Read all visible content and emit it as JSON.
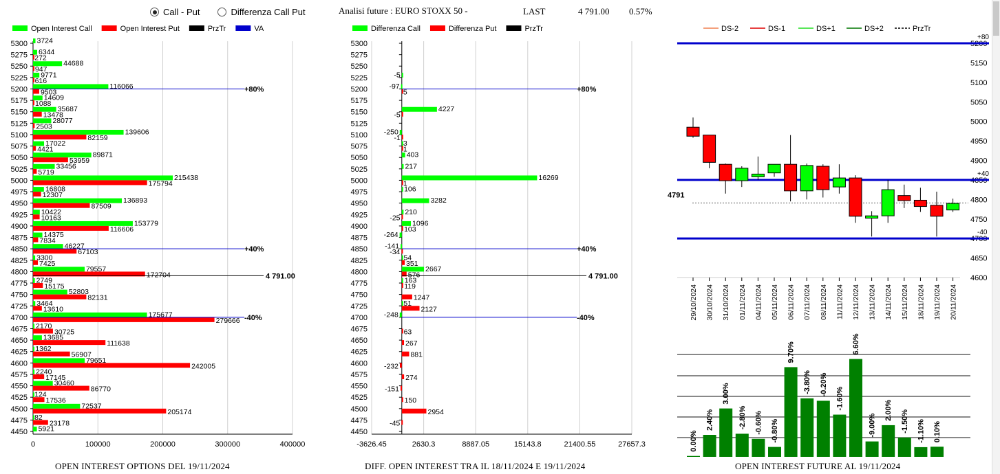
{
  "header": {
    "radio_call_put": "Call - Put",
    "radio_diff": "Differenza Call Put",
    "analysis_label": "Analisi future : EURO STOXX 50 -",
    "last_label": "LAST",
    "last_value": "4 791.00",
    "last_change": "0.57%"
  },
  "footers": {
    "left": "OPEN INTEREST OPTIONS DEL 19/11/2024",
    "middle": "DIFF. OPEN INTEREST TRA IL 18/11/2024 E 19/11/2024",
    "right": "OPEN INTEREST FUTURE AL 19/11/2024"
  },
  "colors": {
    "green": "#00ff00",
    "red": "#ff0000",
    "blue": "#0000cc",
    "dark_green": "#008000",
    "black": "#000000"
  },
  "chart_data": [
    {
      "id": "oi_options",
      "type": "bar",
      "orientation": "horizontal",
      "legend": [
        "Open Interest Call",
        "Open Interest Put",
        "PrzTr",
        "VA"
      ],
      "strikes": [
        "5300",
        "5275",
        "5250",
        "5225",
        "5200",
        "5175",
        "5150",
        "5125",
        "5100",
        "5075",
        "5050",
        "5025",
        "5000",
        "4975",
        "4950",
        "4925",
        "4900",
        "4875",
        "4850",
        "4825",
        "4800",
        "4775",
        "4750",
        "4725",
        "4700",
        "4675",
        "4650",
        "4625",
        "4600",
        "4575",
        "4550",
        "4525",
        "4500",
        "4475",
        "4450"
      ],
      "call": [
        3724,
        6344,
        44688,
        9771,
        116066,
        14609,
        35687,
        28077,
        139606,
        17022,
        89871,
        33456,
        215438,
        16808,
        136893,
        10422,
        153779,
        14375,
        46227,
        3300,
        79557,
        2749,
        52803,
        3464,
        175677,
        2170,
        13685,
        1362,
        79651,
        2240,
        30460,
        124,
        72537,
        82,
        5921
      ],
      "put": [
        null,
        272,
        947,
        616,
        9503,
        1088,
        13478,
        2503,
        82159,
        4421,
        53959,
        5719,
        175794,
        12307,
        87509,
        10163,
        116606,
        7834,
        67103,
        7425,
        172704,
        15175,
        82131,
        13610,
        279666,
        30725,
        111638,
        56907,
        242005,
        17145,
        86770,
        17536,
        205174,
        23178,
        null
      ],
      "xticks": [
        "0",
        "100000",
        "200000",
        "300000",
        "400000"
      ],
      "xlim": [
        0,
        400000
      ],
      "lines": [
        {
          "strike": "5200",
          "label": "+80%"
        },
        {
          "strike": "4850",
          "label": "+40%"
        },
        {
          "strike": "4700",
          "label": "-40%"
        }
      ],
      "price_line": {
        "value": 4791,
        "label": "4 791.00"
      }
    },
    {
      "id": "oi_diff",
      "type": "bar",
      "orientation": "horizontal",
      "legend": [
        "Differenza Call",
        "Differenza Put",
        "PrzTr"
      ],
      "strikes": [
        "5300",
        "5275",
        "5250",
        "5225",
        "5200",
        "5175",
        "5150",
        "5125",
        "5100",
        "5075",
        "5050",
        "5025",
        "5000",
        "4975",
        "4950",
        "4925",
        "4900",
        "4875",
        "4850",
        "4825",
        "4800",
        "4775",
        "4750",
        "4725",
        "4700",
        "4675",
        "4650",
        "4625",
        "4600",
        "4575",
        "4550",
        "4525",
        "4500",
        "4475",
        "4450"
      ],
      "call": [
        null,
        null,
        null,
        -5,
        -97,
        null,
        4227,
        null,
        -250,
        3,
        403,
        217,
        16269,
        106,
        3282,
        210,
        1096,
        -264,
        -141,
        54,
        2667,
        163,
        null,
        51,
        -248,
        null,
        null,
        null,
        null,
        null,
        null,
        null,
        null,
        null,
        null
      ],
      "put": [
        null,
        null,
        null,
        null,
        5,
        null,
        -5,
        null,
        -1,
        1,
        null,
        null,
        1,
        null,
        null,
        -25,
        103,
        null,
        -34,
        351,
        576,
        119,
        1247,
        2127,
        null,
        63,
        267,
        881,
        -232,
        274,
        -151,
        150,
        2954,
        -45,
        null
      ],
      "xticks": [
        "-3626.45",
        "2630.3",
        "8887.05",
        "15143.8",
        "21400.55",
        "27657.3"
      ],
      "xlim": [
        -3626.45,
        27657.3
      ],
      "lines": [
        {
          "strike": "5200",
          "label": "+80%"
        },
        {
          "strike": "4850",
          "label": "+40%"
        },
        {
          "strike": "4700",
          "label": "-40%"
        }
      ],
      "price_line": {
        "value": 4791,
        "label": "4 791.00"
      }
    },
    {
      "id": "candles",
      "type": "candlestick",
      "legend": [
        "DS-2",
        "DS-1",
        "DS+1",
        "DS+2",
        "PrzTr"
      ],
      "dates": [
        "29/10/2024",
        "30/10/2024",
        "31/10/2024",
        "01/11/2024",
        "04/11/2024",
        "05/11/2024",
        "06/11/2024",
        "07/11/2024",
        "08/11/2024",
        "11/11/2024",
        "12/11/2024",
        "13/11/2024",
        "14/11/2024",
        "15/11/2024",
        "18/11/2024",
        "19/11/2024",
        "20/11/2024"
      ],
      "ohlc": [
        [
          4985,
          5010,
          4958,
          4962
        ],
        [
          4965,
          4965,
          4880,
          4895
        ],
        [
          4890,
          4892,
          4815,
          4848
        ],
        [
          4848,
          4885,
          4832,
          4880
        ],
        [
          4858,
          4910,
          4850,
          4865
        ],
        [
          4868,
          4890,
          4858,
          4890
        ],
        [
          4890,
          4965,
          4795,
          4822
        ],
        [
          4822,
          4892,
          4800,
          4887
        ],
        [
          4885,
          4890,
          4805,
          4825
        ],
        [
          4832,
          4890,
          4815,
          4855
        ],
        [
          4855,
          4862,
          4740,
          4757
        ],
        [
          4752,
          4770,
          4705,
          4758
        ],
        [
          4758,
          4850,
          4740,
          4825
        ],
        [
          4810,
          4838,
          4778,
          4797
        ],
        [
          4798,
          4830,
          4768,
          4782
        ],
        [
          4785,
          4820,
          4705,
          4757
        ],
        [
          4773,
          4802,
          4768,
          4790
        ]
      ],
      "yticks": [
        "4600",
        "4650",
        "4700",
        "4750",
        "4800",
        "4850",
        "4900",
        "4950",
        "5000",
        "5050",
        "5100",
        "5150",
        "5200"
      ],
      "ylim": [
        4600,
        5200
      ],
      "levels": [
        {
          "value": 5200,
          "label": "+80"
        },
        {
          "value": 4850,
          "label": "+40"
        },
        {
          "value": 4700,
          "label": "-40"
        }
      ],
      "last_value": 4791,
      "last_label": "4791"
    },
    {
      "id": "oi_future",
      "type": "bar",
      "labels": [
        "0.00%",
        "2.40%",
        "3.00%",
        "-2.80%",
        "-0.60%",
        "-0.80%",
        "9.70%",
        "-3.80%",
        "-0.20%",
        "-1.60%",
        "6.60%",
        "-9.00%",
        "2.00%",
        "-1.50%",
        "-1.10%",
        "0.10%"
      ],
      "values": [
        0.4,
        10.0,
        22.0,
        10.5,
        8.2,
        4.5,
        40.8,
        26.6,
        25.5,
        19.2,
        44.5,
        7.0,
        14.4,
        8.8,
        4.4,
        4.6
      ]
    }
  ]
}
